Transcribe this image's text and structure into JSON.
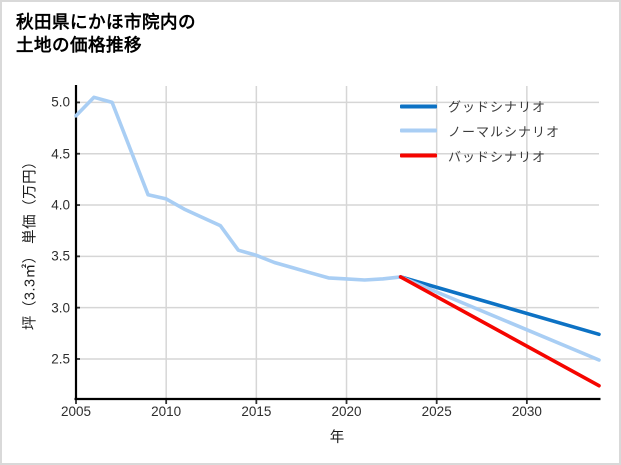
{
  "title": {
    "line1": "秋田県にかほ市院内の",
    "line2": "土地の価格推移"
  },
  "colors": {
    "good_scenario": "#0d72c4",
    "normal_scenario": "#a9cef4",
    "bad_scenario": "#f50500",
    "history_line": "#a9cef4",
    "grid": "#d6d6d6",
    "spine": "#000000",
    "tick": "#333333",
    "tick_text": "#2e2e2e",
    "legend_text": "#3c3c3c",
    "background": "#ffffff",
    "border": "#d9d9d9"
  },
  "chart_data": {
    "type": "line",
    "title": "秋田県にかほ市院内の土地の価格推移",
    "xlabel": "年",
    "ylabel": "坪（3.3㎡） 単価（万円）",
    "xlim": [
      2005,
      2034
    ],
    "ylim": [
      2.11,
      5.16
    ],
    "grid": true,
    "legend_position": "upper right",
    "x_ticks": [
      {
        "label": "2005",
        "value": 2005
      },
      {
        "label": "2010",
        "value": 2010
      },
      {
        "label": "2015",
        "value": 2015
      },
      {
        "label": "2020",
        "value": 2020
      },
      {
        "label": "2025",
        "value": 2025
      },
      {
        "label": "2030",
        "value": 2030
      }
    ],
    "y_ticks": [
      {
        "label": "2.5",
        "value": 2.5
      },
      {
        "label": "3.0",
        "value": 3.0
      },
      {
        "label": "3.5",
        "value": 3.5
      },
      {
        "label": "4.0",
        "value": 4.0
      },
      {
        "label": "4.5",
        "value": 4.5
      },
      {
        "label": "5.0",
        "value": 5.0
      }
    ],
    "history": {
      "color": "#a9cef4",
      "x": [
        2005,
        2006,
        2007,
        2008,
        2009,
        2010,
        2011,
        2012,
        2013,
        2014,
        2015,
        2016,
        2017,
        2018,
        2019,
        2020,
        2021,
        2022,
        2023
      ],
      "values": [
        4.87,
        5.05,
        5.0,
        4.55,
        4.1,
        4.06,
        3.96,
        3.88,
        3.8,
        3.56,
        3.51,
        3.44,
        3.39,
        3.34,
        3.29,
        3.28,
        3.27,
        3.28,
        3.3
      ]
    },
    "series": [
      {
        "name": "グッドシナリオ",
        "color": "#0d72c4",
        "x": [
          2023,
          2034
        ],
        "values": [
          3.3,
          2.74
        ]
      },
      {
        "name": "ノーマルシナリオ",
        "color": "#a9cef4",
        "x": [
          2023,
          2034
        ],
        "values": [
          3.3,
          2.49
        ]
      },
      {
        "name": "バッドシナリオ",
        "color": "#f50500",
        "x": [
          2023,
          2034
        ],
        "values": [
          3.3,
          2.24
        ]
      }
    ]
  }
}
